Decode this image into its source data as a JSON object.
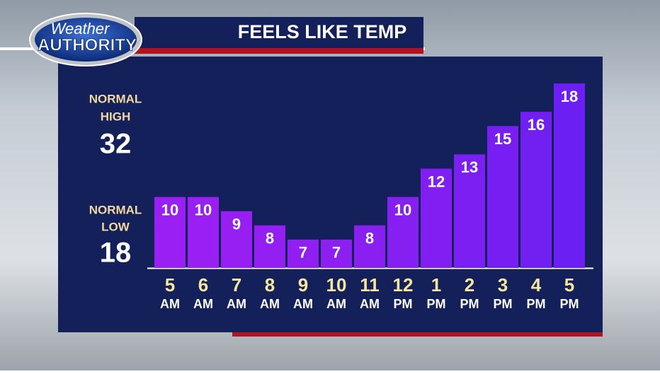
{
  "logo": {
    "line1": "Weather",
    "line2": "AUTHORITY"
  },
  "chart_data": {
    "type": "bar",
    "title": "FEELS LIKE TEMP",
    "categories": [
      [
        "5",
        "AM"
      ],
      [
        "6",
        "AM"
      ],
      [
        "7",
        "AM"
      ],
      [
        "8",
        "AM"
      ],
      [
        "9",
        "AM"
      ],
      [
        "10",
        "AM"
      ],
      [
        "11",
        "AM"
      ],
      [
        "12",
        "PM"
      ],
      [
        "1",
        "PM"
      ],
      [
        "2",
        "PM"
      ],
      [
        "3",
        "PM"
      ],
      [
        "4",
        "PM"
      ],
      [
        "5",
        "PM"
      ]
    ],
    "values": [
      10,
      10,
      9,
      8,
      7,
      7,
      8,
      10,
      12,
      13,
      15,
      16,
      18
    ],
    "colors": [
      "#9a1ff2",
      "#991ff2",
      "#971ff2",
      "#941ff2",
      "#911ff2",
      "#8e1ff2",
      "#8a1ff2",
      "#861ff2",
      "#811ff2",
      "#7c1ff2",
      "#771ff2",
      "#721ff2",
      "#6c1ff2"
    ],
    "ylim": [
      5,
      18
    ],
    "normal_high": {
      "label": [
        "NORMAL",
        "HIGH"
      ],
      "value": 32
    },
    "normal_low": {
      "label": [
        "NORMAL",
        "LOW"
      ],
      "value": 18
    }
  }
}
